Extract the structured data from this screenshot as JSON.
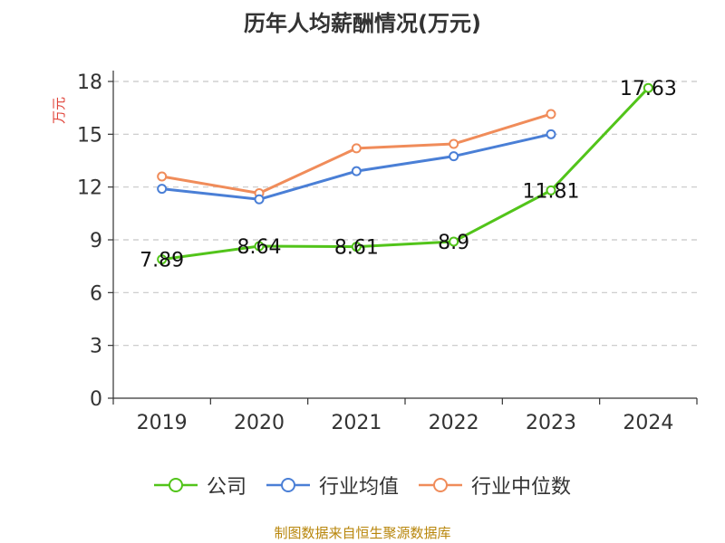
{
  "chart_data": {
    "type": "line",
    "title": "历年人均薪酬情况(万元)",
    "ylabel": "万元",
    "xlabel": "",
    "categories": [
      "2019",
      "2020",
      "2021",
      "2022",
      "2023",
      "2024"
    ],
    "ylim": [
      0,
      18
    ],
    "yticks": [
      0,
      3,
      6,
      9,
      12,
      15,
      18
    ],
    "grid": "horizontal-dashed",
    "legend_position": "bottom",
    "series": [
      {
        "name": "公司",
        "color": "#52c41a",
        "values": [
          7.89,
          8.64,
          8.61,
          8.9,
          11.81,
          17.63
        ],
        "labels": [
          "7.89",
          "8.64",
          "8.61",
          "8.9",
          "11.81",
          "17.63"
        ]
      },
      {
        "name": "行业均值",
        "color": "#4a7fd6",
        "values": [
          11.9,
          11.3,
          12.9,
          13.75,
          15.0,
          null
        ]
      },
      {
        "name": "行业中位数",
        "color": "#f08c5a",
        "values": [
          12.6,
          11.65,
          14.2,
          14.45,
          16.15,
          null
        ]
      }
    ]
  },
  "footer": {
    "source": "制图数据来自恒生聚源数据库"
  }
}
